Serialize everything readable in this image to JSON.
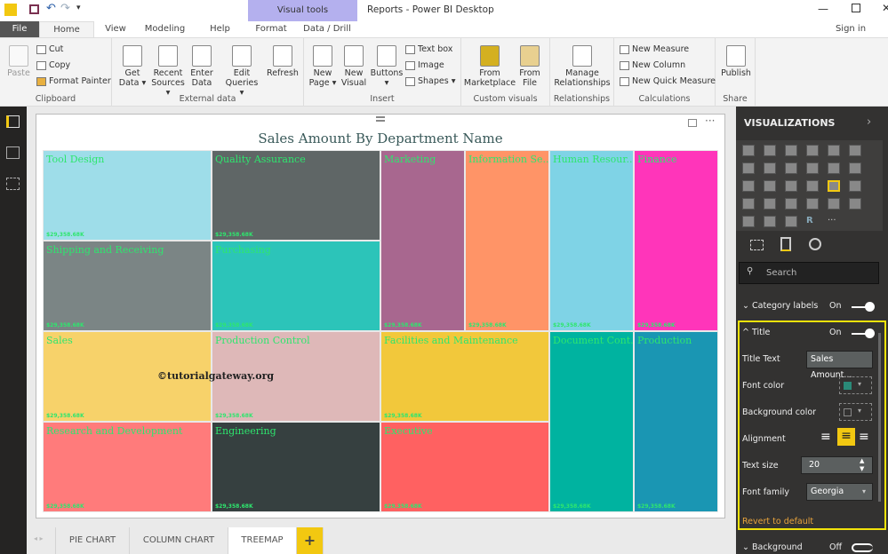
{
  "window": {
    "title": "Reports - Power BI Desktop",
    "contextual_tab": "Visual tools",
    "sign_in": "Sign in"
  },
  "menu_tabs": [
    "File",
    "Home",
    "View",
    "Modeling",
    "Help",
    "Format",
    "Data / Drill"
  ],
  "ribbon": {
    "clipboard": {
      "label": "Clipboard",
      "paste": "Paste",
      "cut": "Cut",
      "copy": "Copy",
      "format_painter": "Format Painter"
    },
    "external": {
      "label": "External data",
      "get_data": "Get Data ▾",
      "recent": "Recent Sources ▾",
      "enter": "Enter Data",
      "edit": "Edit Queries ▾",
      "refresh": "Refresh"
    },
    "insert": {
      "label": "Insert",
      "new_page": "New Page ▾",
      "new_visual": "New Visual",
      "buttons": "Buttons ▾",
      "text_box": "Text box",
      "image": "Image",
      "shapes": "Shapes ▾"
    },
    "custom": {
      "label": "Custom visuals",
      "marketplace": "From Marketplace",
      "file": "From File"
    },
    "relationships": {
      "label": "Relationships",
      "manage": "Manage Relationships"
    },
    "calculations": {
      "label": "Calculations",
      "new_measure": "New Measure",
      "new_column": "New Column",
      "quick_measure": "New Quick Measure"
    },
    "share": {
      "label": "Share",
      "publish": "Publish"
    }
  },
  "treemap": {
    "title": "Sales Amount By Department Name",
    "title_color": "#3a5a5a",
    "label_color": "#2ee66e",
    "tiles": [
      {
        "name": "Tool Design",
        "value": "$29,358.68K",
        "color": "#9edde9"
      },
      {
        "name": "Quality Assurance",
        "value": "$29,358.68K",
        "color": "#5f6666"
      },
      {
        "name": "Shipping and Receiving",
        "value": "$29,358.68K",
        "color": "#7b8585"
      },
      {
        "name": "Purchasing",
        "value": "$29,358.68K",
        "color": "#2cc4b9"
      },
      {
        "name": "Marketing",
        "value": "$29,358.68K",
        "color": "#a8678f"
      },
      {
        "name": "Information Se...",
        "value": "$29,358.68K",
        "color": "#ff9467"
      },
      {
        "name": "Human Resour...",
        "value": "$29,358.68K",
        "color": "#7fd3e6"
      },
      {
        "name": "Finance",
        "value": "$29,358.68K",
        "color": "#ff35ba"
      },
      {
        "name": "Sales",
        "value": "$29,358.68K",
        "color": "#f7d26a"
      },
      {
        "name": "Production Control",
        "value": "$29,358.68K",
        "color": "#deb8b8"
      },
      {
        "name": "Facilities and Maintenance",
        "value": "$29,358.68K",
        "color": "#f2c83b"
      },
      {
        "name": "Document Cont...",
        "value": "$29,358.68K",
        "color": "#00b3a0"
      },
      {
        "name": "Production",
        "value": "$29,358.68K",
        "color": "#1a96b3"
      },
      {
        "name": "Research and Development",
        "value": "$29,358.68K",
        "color": "#ff7b7b"
      },
      {
        "name": "Engineering",
        "value": "$29,358.68K",
        "color": "#364040"
      },
      {
        "name": "Executive",
        "value": "$29,358.68K",
        "color": "#ff6161"
      }
    ],
    "watermark": "©tutorialgateway.org"
  },
  "page_tabs": [
    {
      "label": "PIE CHART",
      "active": false
    },
    {
      "label": "COLUMN CHART",
      "active": false
    },
    {
      "label": "TREEMAP",
      "active": true
    }
  ],
  "add_page": "+",
  "visualizations": {
    "header": "VISUALIZATIONS",
    "search_placeholder": "Search",
    "category_labels": {
      "label": "Category labels",
      "state": "On"
    },
    "title_section": {
      "label": "Title",
      "state": "On"
    },
    "title_text": {
      "label": "Title Text",
      "value": "Sales Amount..."
    },
    "font_color": {
      "label": "Font color",
      "value": "#2a8a78"
    },
    "background_color": {
      "label": "Background color"
    },
    "alignment": {
      "label": "Alignment",
      "selected": "center"
    },
    "text_size": {
      "label": "Text size",
      "value": "20"
    },
    "font_family": {
      "label": "Font family",
      "value": "Georgia"
    },
    "revert": "Revert to default",
    "background": {
      "label": "Background",
      "state": "Off"
    },
    "accent": "#f2c811"
  }
}
